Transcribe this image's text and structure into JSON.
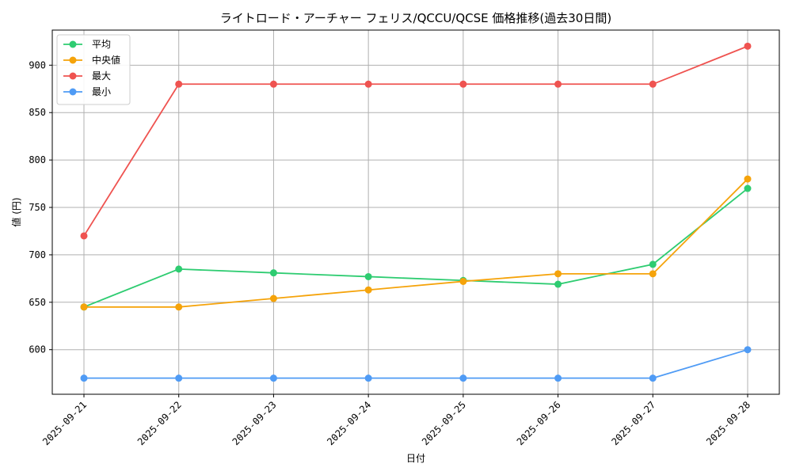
{
  "chart_data": {
    "type": "line",
    "title": "ライトロード・アーチャー フェリス/QCCU/QCSE 価格推移(過去30日間)",
    "xlabel": "日付",
    "ylabel": "値 (円)",
    "categories": [
      "2025-09-21",
      "2025-09-22",
      "2025-09-23",
      "2025-09-24",
      "2025-09-25",
      "2025-09-26",
      "2025-09-27",
      "2025-09-28"
    ],
    "ylim": [
      553,
      937
    ],
    "yticks": [
      600,
      650,
      700,
      750,
      800,
      850,
      900
    ],
    "grid": true,
    "legend_position": "top-left",
    "series": [
      {
        "name": "平均",
        "color": "#2ecc71",
        "values": [
          645,
          685,
          681,
          677,
          673,
          669,
          690,
          770
        ]
      },
      {
        "name": "中央値",
        "color": "#f5a30a",
        "values": [
          645,
          645,
          654,
          663,
          672,
          680,
          680,
          780
        ]
      },
      {
        "name": "最大",
        "color": "#ef5350",
        "values": [
          720,
          880,
          880,
          880,
          880,
          880,
          880,
          920
        ]
      },
      {
        "name": "最小",
        "color": "#4f9bf5",
        "values": [
          570,
          570,
          570,
          570,
          570,
          570,
          570,
          600
        ]
      }
    ]
  }
}
